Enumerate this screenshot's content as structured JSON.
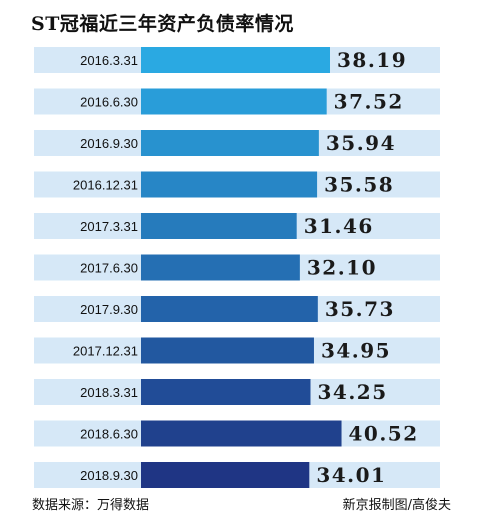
{
  "title": "ST冠福近三年资产负债率情况",
  "chart_data": {
    "type": "bar",
    "orientation": "horizontal",
    "categories": [
      "2016.3.31",
      "2016.6.30",
      "2016.9.30",
      "2016.12.31",
      "2017.3.31",
      "2017.6.30",
      "2017.9.30",
      "2017.12.31",
      "2018.3.31",
      "2018.6.30",
      "2018.9.30"
    ],
    "values": [
      38.19,
      37.52,
      35.94,
      35.58,
      31.46,
      32.1,
      35.73,
      34.95,
      34.25,
      40.52,
      34.01
    ],
    "value_labels": [
      "38.19",
      "37.52",
      "35.94",
      "35.58",
      "31.46",
      "32.10",
      "35.73",
      "34.95",
      "34.25",
      "40.52",
      "34.01"
    ],
    "title": "",
    "xlabel": "",
    "ylabel": "",
    "grid": false,
    "colors": {
      "background_band": "#d6e8f7",
      "bar_gradient": [
        "#2aa9e2",
        "#1f3584"
      ],
      "value_text": "#1a1a1a"
    }
  },
  "footer": {
    "source": "数据来源：万得数据",
    "credit": "新京报制图/高俊夫"
  }
}
